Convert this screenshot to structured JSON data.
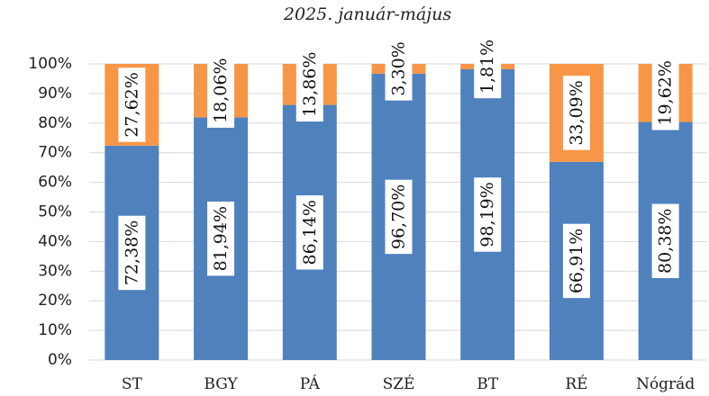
{
  "chart_data": {
    "type": "stacked_bar",
    "title": "2025. január-május",
    "categories": [
      "ST",
      "BGY",
      "PÁ",
      "SZÉ",
      "BT",
      "RÉ",
      "Nógrád"
    ],
    "series": [
      {
        "color": "#4f81bd",
        "values": [
          72.38,
          81.94,
          86.14,
          96.7,
          98.19,
          66.91,
          80.38
        ],
        "value_labels": [
          "72,38%",
          "81,94%",
          "86,14%",
          "96,70%",
          "98,19%",
          "66,91%",
          "80,38%"
        ]
      },
      {
        "color": "#f79646",
        "values": [
          27.62,
          18.06,
          13.86,
          3.3,
          1.81,
          33.09,
          19.62
        ],
        "value_labels": [
          "27,62%",
          "18,06%",
          "13,86%",
          "3,30%",
          "1,81%",
          "33,09%",
          "19,62%"
        ]
      }
    ],
    "ylim": [
      0,
      100
    ],
    "yticks": [
      {
        "value": 0,
        "label": "0%"
      },
      {
        "value": 10,
        "label": "10%"
      },
      {
        "value": 20,
        "label": "20%"
      },
      {
        "value": 30,
        "label": "30%"
      },
      {
        "value": 40,
        "label": "40%"
      },
      {
        "value": 50,
        "label": "50%"
      },
      {
        "value": 60,
        "label": "60%"
      },
      {
        "value": 70,
        "label": "70%"
      },
      {
        "value": 80,
        "label": "80%"
      },
      {
        "value": 90,
        "label": "90%"
      },
      {
        "value": 100,
        "label": "100%"
      }
    ],
    "grid": true
  }
}
